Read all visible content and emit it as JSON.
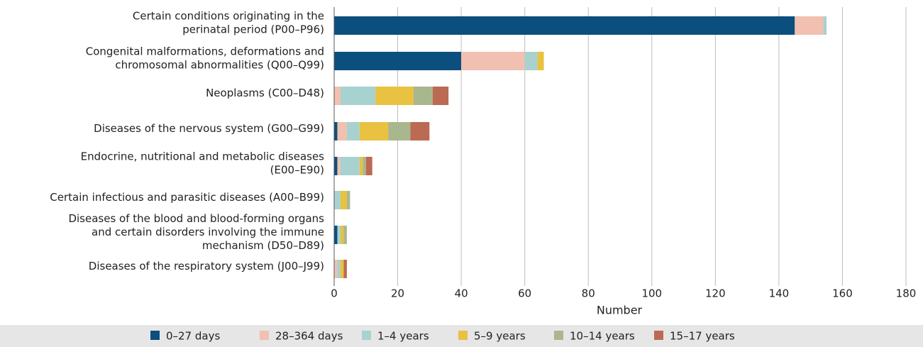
{
  "chart_data": {
    "type": "stacked_barh",
    "x_label": "Number",
    "categories": [
      "Certain conditions originating in the perinatal period (P00–P96)",
      "Congenital malformations, deformations and chromosomal abnormalities (Q00–Q99)",
      "Neoplasms (C00–D48)",
      "Diseases of the nervous system (G00–G99)",
      "Endocrine, nutritional and metabolic diseases (E00–E90)",
      "Certain infectious and parasitic diseases (A00–B99)",
      "Diseases of the blood and blood-forming organs and certain disorders involving the immune mechanism (D50–D89)",
      "Diseases of the respiratory system (J00–J99)"
    ],
    "series": [
      {
        "name": "0–27 days",
        "color": "#0b4f7e",
        "values": [
          145,
          40,
          0,
          1,
          1,
          0,
          1,
          0
        ]
      },
      {
        "name": "28–364 days",
        "color": "#f1c0b0",
        "values": [
          9,
          20,
          2,
          3,
          1,
          0,
          0,
          1
        ]
      },
      {
        "name": "1–4 years",
        "color": "#a7d2d0",
        "values": [
          1,
          4,
          11,
          4,
          6,
          2,
          1,
          1
        ]
      },
      {
        "name": "5–9 years",
        "color": "#e8c240",
        "values": [
          0,
          2,
          12,
          9,
          1,
          2,
          1,
          1
        ]
      },
      {
        "name": "10–14 years",
        "color": "#a9b78e",
        "values": [
          0,
          0,
          6,
          7,
          1,
          1,
          1,
          0
        ]
      },
      {
        "name": "15–17 years",
        "color": "#bb6a53",
        "values": [
          0,
          0,
          5,
          6,
          2,
          0,
          0,
          1
        ]
      }
    ],
    "xlim": [
      0,
      180
    ],
    "xticks": [
      0,
      20,
      40,
      60,
      80,
      100,
      120,
      140,
      160,
      180
    ],
    "grid": true,
    "legend": "bottom"
  }
}
